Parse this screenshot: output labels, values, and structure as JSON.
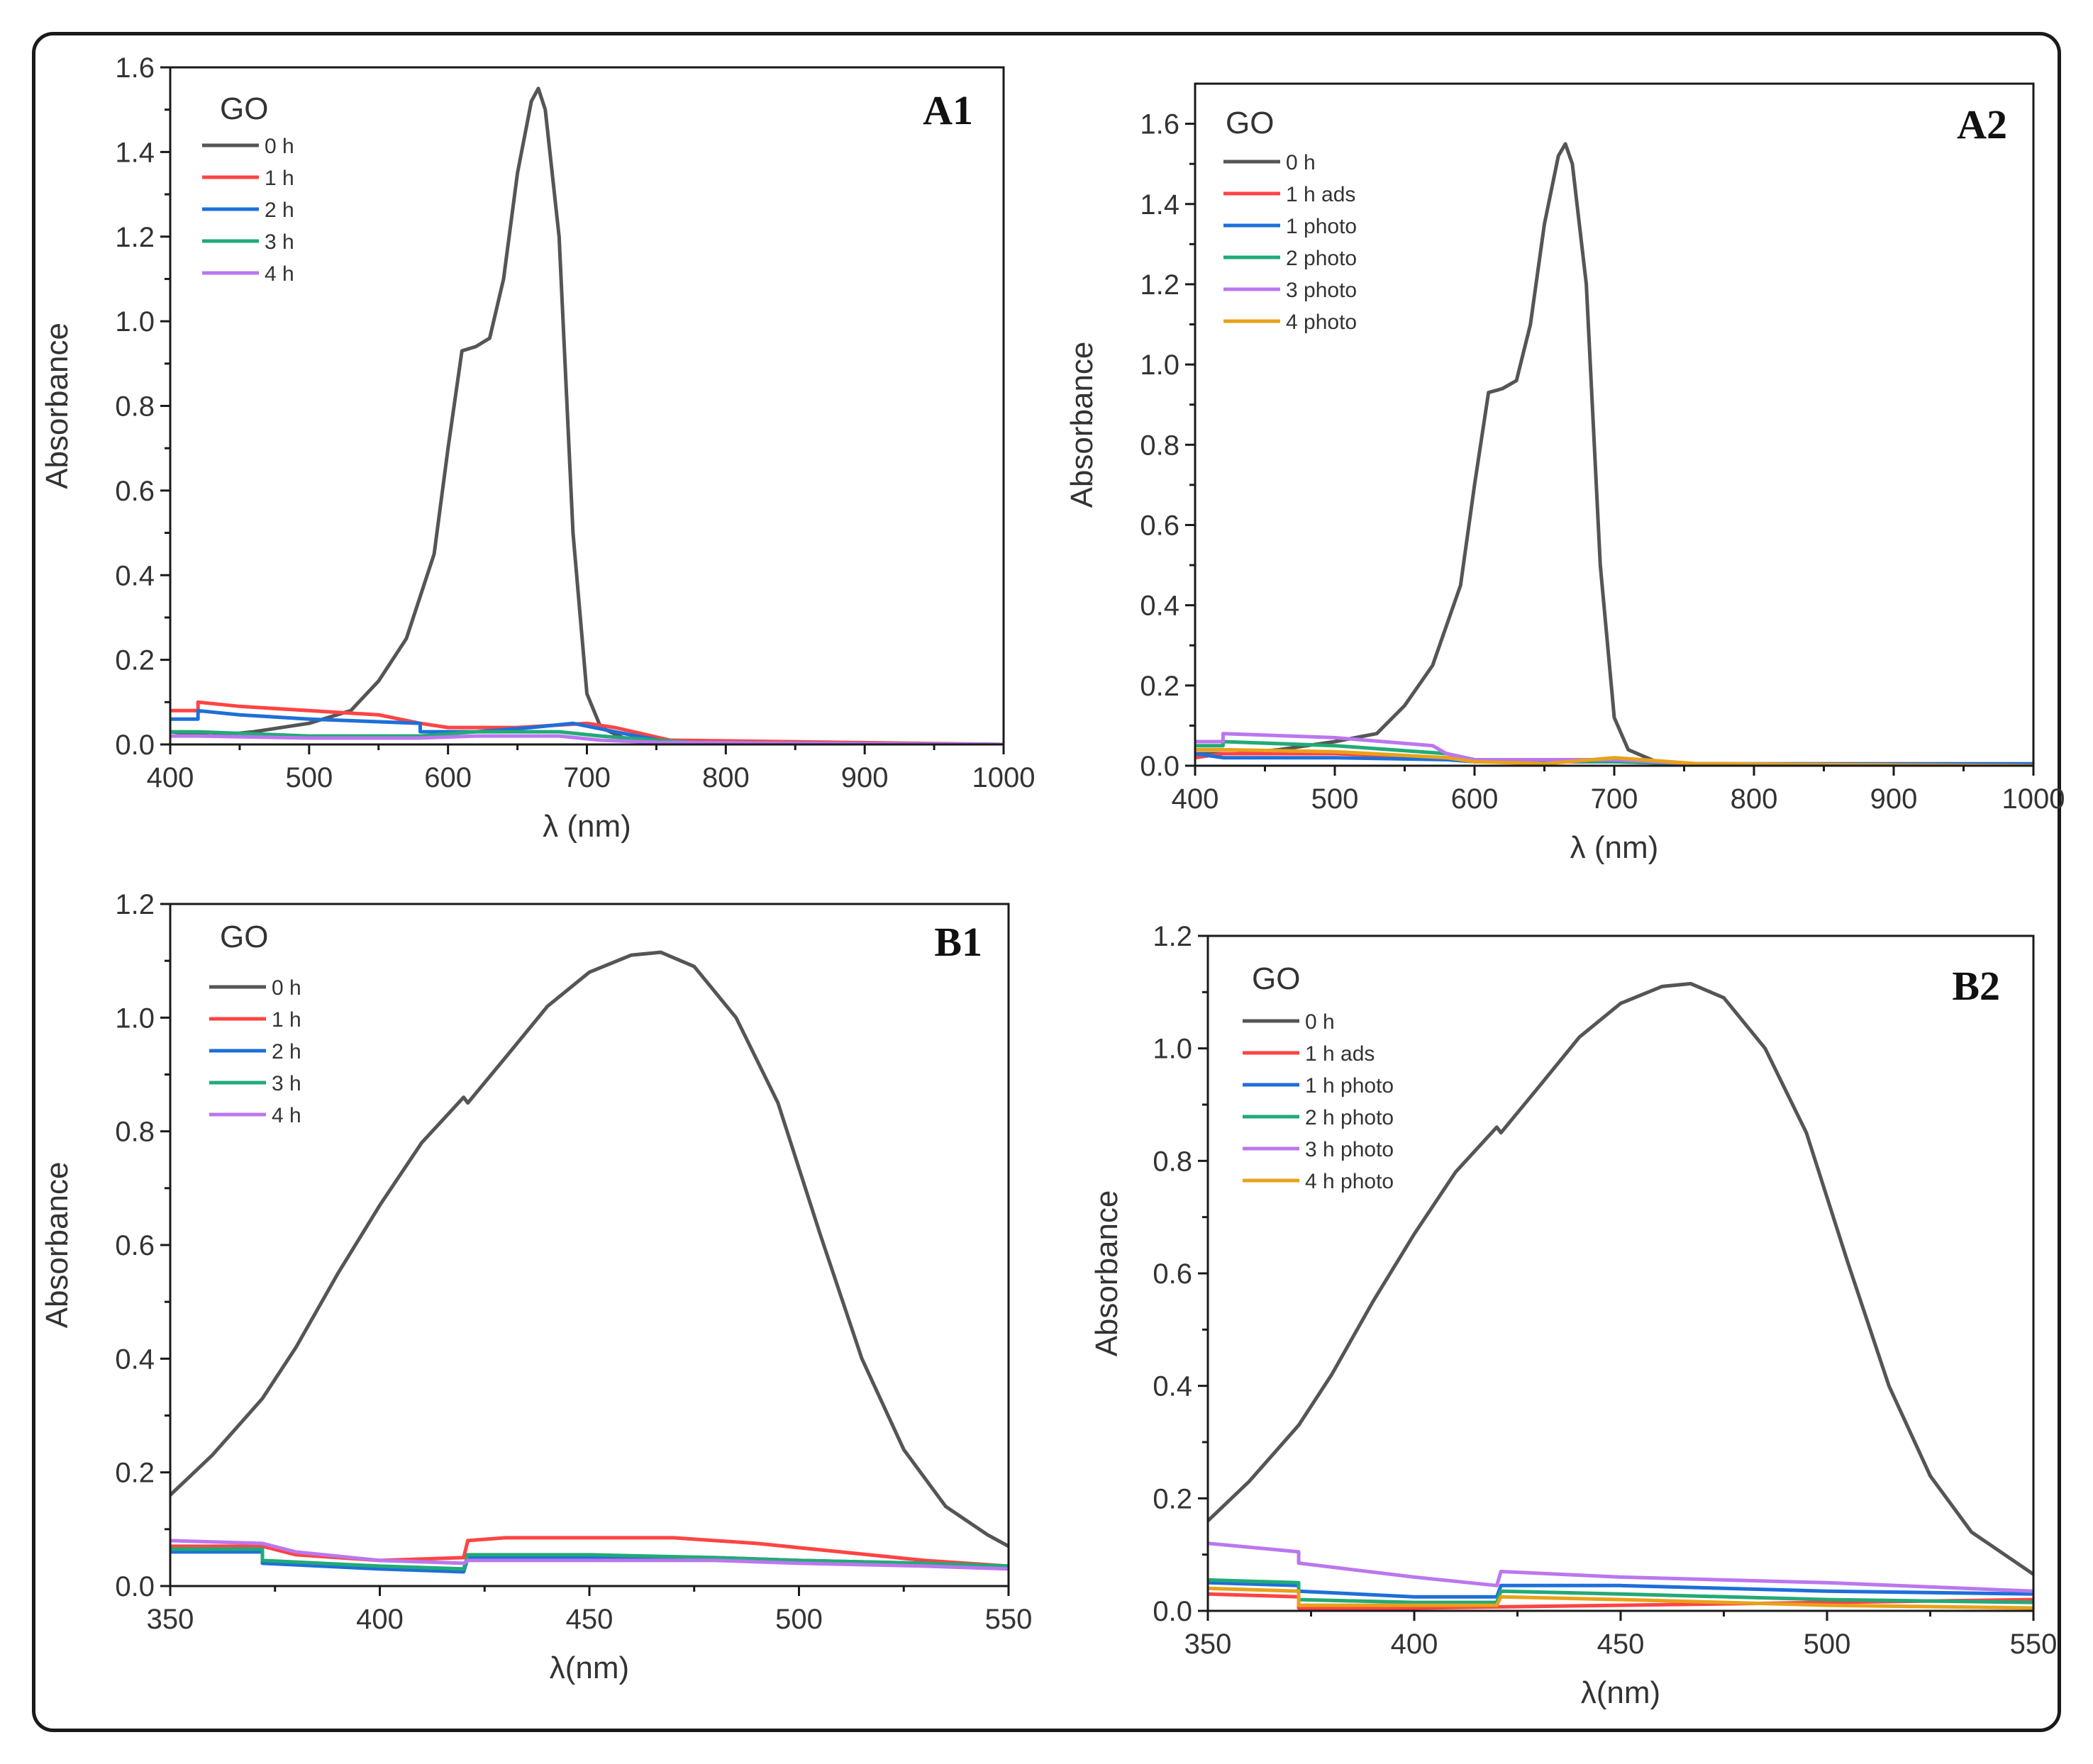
{
  "chart_data": [
    {
      "type": "line",
      "panel_label": "A1",
      "legend_title": "GO",
      "xlabel": "λ (nm)",
      "ylabel": "Absorbance",
      "xlim": [
        400,
        1000
      ],
      "ylim": [
        0,
        1.6
      ],
      "xticks": [
        400,
        500,
        600,
        700,
        800,
        900,
        1000
      ],
      "yticks": [
        0.0,
        0.2,
        0.4,
        0.6,
        0.8,
        1.0,
        1.2,
        1.4,
        1.6
      ],
      "series": [
        {
          "name": "0 h",
          "color": "#555555",
          "x": [
            400,
            430,
            460,
            500,
            530,
            550,
            570,
            590,
            600,
            610,
            620,
            630,
            640,
            650,
            660,
            665,
            670,
            680,
            690,
            700,
            710,
            730,
            760,
            1000
          ],
          "y": [
            0.03,
            0.02,
            0.03,
            0.05,
            0.08,
            0.15,
            0.25,
            0.45,
            0.7,
            0.93,
            0.94,
            0.96,
            1.1,
            1.35,
            1.52,
            1.55,
            1.5,
            1.2,
            0.5,
            0.12,
            0.04,
            0.01,
            0.0,
            0.0
          ]
        },
        {
          "name": "1 h",
          "color": "#ff4444",
          "x": [
            400,
            420,
            420,
            450,
            500,
            550,
            580,
            600,
            650,
            700,
            720,
            760,
            1000
          ],
          "y": [
            0.08,
            0.08,
            0.1,
            0.09,
            0.08,
            0.07,
            0.05,
            0.04,
            0.04,
            0.05,
            0.04,
            0.01,
            0.0
          ]
        },
        {
          "name": "2 h",
          "color": "#1e6fd9",
          "x": [
            400,
            420,
            420,
            450,
            500,
            580,
            580,
            620,
            660,
            690,
            720,
            760,
            1000
          ],
          "y": [
            0.06,
            0.06,
            0.08,
            0.07,
            0.06,
            0.05,
            0.03,
            0.03,
            0.04,
            0.05,
            0.03,
            0.005,
            0.0
          ]
        },
        {
          "name": "3 h",
          "color": "#22aa77",
          "x": [
            400,
            420,
            500,
            580,
            620,
            680,
            710,
            750,
            800,
            1000
          ],
          "y": [
            0.03,
            0.03,
            0.02,
            0.02,
            0.03,
            0.03,
            0.02,
            0.01,
            0.0,
            0.0
          ]
        },
        {
          "name": "4 h",
          "color": "#bb77ee",
          "x": [
            400,
            420,
            500,
            580,
            620,
            680,
            710,
            750,
            1000
          ],
          "y": [
            0.02,
            0.02,
            0.015,
            0.015,
            0.02,
            0.02,
            0.01,
            0.005,
            0.0
          ]
        }
      ]
    },
    {
      "type": "line",
      "panel_label": "A2",
      "legend_title": "GO",
      "xlabel": "λ (nm)",
      "ylabel": "Absorbance",
      "xlim": [
        400,
        1000
      ],
      "ylim": [
        0,
        1.7
      ],
      "xticks": [
        400,
        500,
        600,
        700,
        800,
        900,
        1000
      ],
      "yticks": [
        0.0,
        0.2,
        0.4,
        0.6,
        0.8,
        1.0,
        1.2,
        1.4,
        1.6
      ],
      "series": [
        {
          "name": "0 h",
          "color": "#555555",
          "x": [
            400,
            430,
            460,
            500,
            530,
            550,
            570,
            590,
            600,
            610,
            620,
            630,
            640,
            650,
            660,
            665,
            670,
            680,
            690,
            700,
            710,
            730,
            760,
            1000
          ],
          "y": [
            0.03,
            0.03,
            0.04,
            0.06,
            0.08,
            0.15,
            0.25,
            0.45,
            0.7,
            0.93,
            0.94,
            0.96,
            1.1,
            1.35,
            1.52,
            1.55,
            1.5,
            1.2,
            0.5,
            0.12,
            0.04,
            0.01,
            0.0,
            0.0
          ]
        },
        {
          "name": "1 h ads",
          "color": "#ff4444",
          "x": [
            400,
            420,
            500,
            580,
            600,
            700,
            800,
            1000
          ],
          "y": [
            0.02,
            0.03,
            0.03,
            0.02,
            0.01,
            0.01,
            0.0,
            0.0
          ]
        },
        {
          "name": "1 photo",
          "color": "#1e6fd9",
          "x": [
            400,
            420,
            500,
            580,
            600,
            700,
            760,
            1000
          ],
          "y": [
            0.03,
            0.02,
            0.02,
            0.015,
            0.01,
            0.01,
            0.005,
            0.005
          ]
        },
        {
          "name": "2 photo",
          "color": "#22aa77",
          "x": [
            400,
            420,
            420,
            500,
            580,
            600,
            700,
            760,
            1000
          ],
          "y": [
            0.05,
            0.05,
            0.06,
            0.05,
            0.03,
            0.015,
            0.01,
            0.005,
            0.0
          ]
        },
        {
          "name": "3 photo",
          "color": "#bb77ee",
          "x": [
            400,
            420,
            420,
            500,
            570,
            580,
            600,
            700,
            760,
            1000
          ],
          "y": [
            0.06,
            0.06,
            0.08,
            0.07,
            0.05,
            0.03,
            0.015,
            0.015,
            0.005,
            0.0
          ]
        },
        {
          "name": "4 photo",
          "color": "#e8a21a",
          "x": [
            400,
            420,
            500,
            580,
            600,
            650,
            700,
            760,
            1000
          ],
          "y": [
            0.04,
            0.04,
            0.035,
            0.02,
            0.01,
            0.005,
            0.02,
            0.005,
            0.0
          ]
        }
      ]
    },
    {
      "type": "line",
      "panel_label": "B1",
      "legend_title": "GO",
      "xlabel": "λ(nm)",
      "ylabel": "Absorbance",
      "xlim": [
        350,
        550
      ],
      "ylim": [
        0,
        1.2
      ],
      "xticks": [
        350,
        400,
        450,
        500,
        550
      ],
      "yticks": [
        0.0,
        0.2,
        0.4,
        0.6,
        0.8,
        1.0,
        1.2
      ],
      "series": [
        {
          "name": "0 h",
          "color": "#555555",
          "x": [
            350,
            360,
            372,
            380,
            390,
            400,
            410,
            420,
            421,
            430,
            440,
            450,
            460,
            467,
            475,
            485,
            495,
            505,
            515,
            525,
            535,
            545,
            550
          ],
          "y": [
            0.16,
            0.23,
            0.33,
            0.42,
            0.55,
            0.67,
            0.78,
            0.86,
            0.85,
            0.93,
            1.02,
            1.08,
            1.11,
            1.115,
            1.09,
            1.0,
            0.85,
            0.62,
            0.4,
            0.24,
            0.14,
            0.09,
            0.07
          ]
        },
        {
          "name": "1 h",
          "color": "#ff4444",
          "x": [
            350,
            372,
            380,
            400,
            420,
            421,
            430,
            450,
            470,
            490,
            510,
            530,
            550
          ],
          "y": [
            0.07,
            0.07,
            0.055,
            0.045,
            0.05,
            0.08,
            0.085,
            0.085,
            0.085,
            0.075,
            0.06,
            0.045,
            0.035
          ]
        },
        {
          "name": "2 h",
          "color": "#1e6fd9",
          "x": [
            350,
            372,
            372,
            400,
            420,
            421,
            450,
            480,
            500,
            530,
            550
          ],
          "y": [
            0.06,
            0.06,
            0.04,
            0.03,
            0.025,
            0.05,
            0.05,
            0.05,
            0.045,
            0.04,
            0.035
          ]
        },
        {
          "name": "3 h",
          "color": "#22aa77",
          "x": [
            350,
            372,
            372,
            400,
            420,
            421,
            450,
            480,
            500,
            530,
            550
          ],
          "y": [
            0.065,
            0.065,
            0.045,
            0.035,
            0.03,
            0.055,
            0.055,
            0.05,
            0.045,
            0.04,
            0.035
          ]
        },
        {
          "name": "4 h",
          "color": "#bb77ee",
          "x": [
            350,
            372,
            380,
            400,
            420,
            421,
            450,
            480,
            500,
            530,
            550
          ],
          "y": [
            0.08,
            0.075,
            0.06,
            0.045,
            0.04,
            0.045,
            0.045,
            0.045,
            0.04,
            0.035,
            0.03
          ]
        }
      ]
    },
    {
      "type": "line",
      "panel_label": "B2",
      "legend_title": "GO",
      "xlabel": "λ(nm)",
      "ylabel": "Absorbance",
      "xlim": [
        350,
        550
      ],
      "ylim": [
        0,
        1.2
      ],
      "xticks": [
        350,
        400,
        450,
        500,
        550
      ],
      "yticks": [
        0.0,
        0.2,
        0.4,
        0.6,
        0.8,
        1.0,
        1.2
      ],
      "series": [
        {
          "name": "0 h",
          "color": "#555555",
          "x": [
            350,
            360,
            372,
            380,
            390,
            400,
            410,
            420,
            421,
            430,
            440,
            450,
            460,
            467,
            475,
            485,
            495,
            505,
            515,
            525,
            535,
            545,
            550
          ],
          "y": [
            0.16,
            0.23,
            0.33,
            0.42,
            0.55,
            0.67,
            0.78,
            0.86,
            0.85,
            0.93,
            1.02,
            1.08,
            1.11,
            1.115,
            1.09,
            1.0,
            0.85,
            0.62,
            0.4,
            0.24,
            0.14,
            0.09,
            0.065
          ]
        },
        {
          "name": "1 h ads",
          "color": "#ff4444",
          "x": [
            350,
            372,
            372,
            400,
            450,
            500,
            550
          ],
          "y": [
            0.03,
            0.025,
            0.005,
            0.005,
            0.01,
            0.015,
            0.02
          ]
        },
        {
          "name": "1 h photo",
          "color": "#1e6fd9",
          "x": [
            350,
            372,
            372,
            400,
            420,
            421,
            450,
            500,
            550
          ],
          "y": [
            0.05,
            0.045,
            0.035,
            0.025,
            0.025,
            0.045,
            0.045,
            0.035,
            0.03
          ]
        },
        {
          "name": "2 h photo",
          "color": "#22aa77",
          "x": [
            350,
            372,
            372,
            400,
            420,
            421,
            450,
            500,
            550
          ],
          "y": [
            0.055,
            0.05,
            0.02,
            0.015,
            0.015,
            0.035,
            0.03,
            0.02,
            0.015
          ]
        },
        {
          "name": "3 h photo",
          "color": "#bb77ee",
          "x": [
            350,
            372,
            372,
            400,
            420,
            421,
            450,
            500,
            550
          ],
          "y": [
            0.12,
            0.105,
            0.085,
            0.06,
            0.045,
            0.07,
            0.06,
            0.05,
            0.035
          ]
        },
        {
          "name": "4 h photo",
          "color": "#e8a21a",
          "x": [
            350,
            372,
            372,
            400,
            420,
            421,
            450,
            500,
            550
          ],
          "y": [
            0.04,
            0.035,
            0.01,
            0.01,
            0.01,
            0.025,
            0.02,
            0.01,
            0.005
          ]
        }
      ]
    }
  ]
}
